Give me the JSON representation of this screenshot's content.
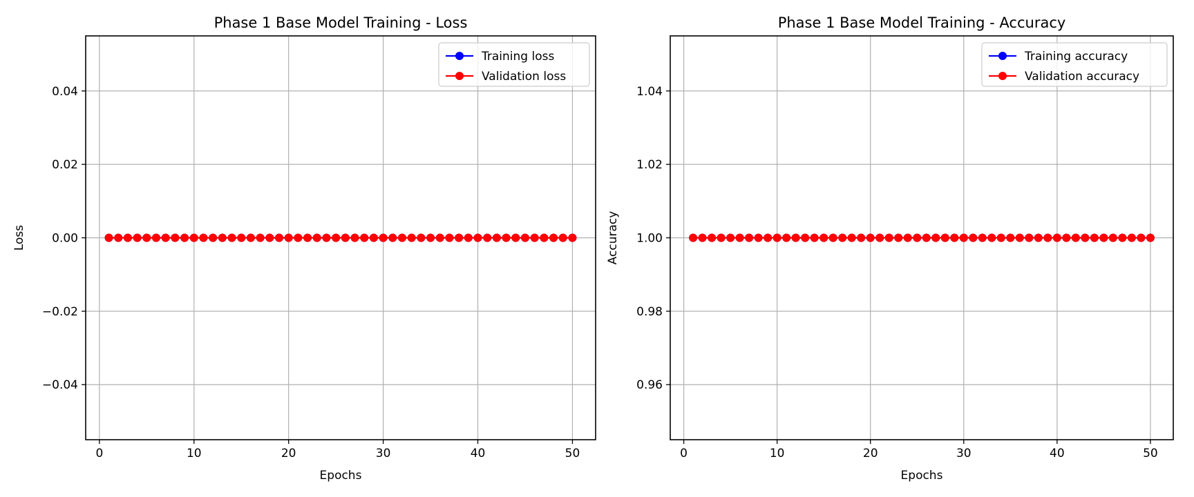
{
  "chart_data": [
    {
      "type": "line",
      "title": "Phase 1 Base Model Training - Loss",
      "xlabel": "Epochs",
      "ylabel": "Loss",
      "xlim": [
        -1.45,
        52.45
      ],
      "ylim": [
        -0.055,
        0.055
      ],
      "xticks": [
        0,
        10,
        20,
        30,
        40,
        50
      ],
      "xtick_labels": [
        "0",
        "10",
        "20",
        "30",
        "40",
        "50"
      ],
      "yticks": [
        -0.04,
        -0.02,
        0.0,
        0.02,
        0.04
      ],
      "ytick_labels": [
        "−0.04",
        "−0.02",
        "0.00",
        "0.02",
        "0.04"
      ],
      "grid": true,
      "legend_position": "top-right",
      "x": [
        1,
        2,
        3,
        4,
        5,
        6,
        7,
        8,
        9,
        10,
        11,
        12,
        13,
        14,
        15,
        16,
        17,
        18,
        19,
        20,
        21,
        22,
        23,
        24,
        25,
        26,
        27,
        28,
        29,
        30,
        31,
        32,
        33,
        34,
        35,
        36,
        37,
        38,
        39,
        40,
        41,
        42,
        43,
        44,
        45,
        46,
        47,
        48,
        49,
        50
      ],
      "series": [
        {
          "name": "Training loss",
          "color": "#0000ff",
          "values": [
            0,
            0,
            0,
            0,
            0,
            0,
            0,
            0,
            0,
            0,
            0,
            0,
            0,
            0,
            0,
            0,
            0,
            0,
            0,
            0,
            0,
            0,
            0,
            0,
            0,
            0,
            0,
            0,
            0,
            0,
            0,
            0,
            0,
            0,
            0,
            0,
            0,
            0,
            0,
            0,
            0,
            0,
            0,
            0,
            0,
            0,
            0,
            0,
            0,
            0
          ]
        },
        {
          "name": "Validation loss",
          "color": "#ff0000",
          "values": [
            0,
            0,
            0,
            0,
            0,
            0,
            0,
            0,
            0,
            0,
            0,
            0,
            0,
            0,
            0,
            0,
            0,
            0,
            0,
            0,
            0,
            0,
            0,
            0,
            0,
            0,
            0,
            0,
            0,
            0,
            0,
            0,
            0,
            0,
            0,
            0,
            0,
            0,
            0,
            0,
            0,
            0,
            0,
            0,
            0,
            0,
            0,
            0,
            0,
            0
          ]
        }
      ]
    },
    {
      "type": "line",
      "title": "Phase 1 Base Model Training - Accuracy",
      "xlabel": "Epochs",
      "ylabel": "Accuracy",
      "xlim": [
        -1.45,
        52.45
      ],
      "ylim": [
        0.945,
        1.055
      ],
      "xticks": [
        0,
        10,
        20,
        30,
        40,
        50
      ],
      "xtick_labels": [
        "0",
        "10",
        "20",
        "30",
        "40",
        "50"
      ],
      "yticks": [
        0.96,
        0.98,
        1.0,
        1.02,
        1.04
      ],
      "ytick_labels": [
        "0.96",
        "0.98",
        "1.00",
        "1.02",
        "1.04"
      ],
      "grid": true,
      "legend_position": "top-right",
      "x": [
        1,
        2,
        3,
        4,
        5,
        6,
        7,
        8,
        9,
        10,
        11,
        12,
        13,
        14,
        15,
        16,
        17,
        18,
        19,
        20,
        21,
        22,
        23,
        24,
        25,
        26,
        27,
        28,
        29,
        30,
        31,
        32,
        33,
        34,
        35,
        36,
        37,
        38,
        39,
        40,
        41,
        42,
        43,
        44,
        45,
        46,
        47,
        48,
        49,
        50
      ],
      "series": [
        {
          "name": "Training accuracy",
          "color": "#0000ff",
          "values": [
            1,
            1,
            1,
            1,
            1,
            1,
            1,
            1,
            1,
            1,
            1,
            1,
            1,
            1,
            1,
            1,
            1,
            1,
            1,
            1,
            1,
            1,
            1,
            1,
            1,
            1,
            1,
            1,
            1,
            1,
            1,
            1,
            1,
            1,
            1,
            1,
            1,
            1,
            1,
            1,
            1,
            1,
            1,
            1,
            1,
            1,
            1,
            1,
            1,
            1
          ]
        },
        {
          "name": "Validation accuracy",
          "color": "#ff0000",
          "values": [
            1,
            1,
            1,
            1,
            1,
            1,
            1,
            1,
            1,
            1,
            1,
            1,
            1,
            1,
            1,
            1,
            1,
            1,
            1,
            1,
            1,
            1,
            1,
            1,
            1,
            1,
            1,
            1,
            1,
            1,
            1,
            1,
            1,
            1,
            1,
            1,
            1,
            1,
            1,
            1,
            1,
            1,
            1,
            1,
            1,
            1,
            1,
            1,
            1,
            1
          ]
        }
      ]
    }
  ]
}
